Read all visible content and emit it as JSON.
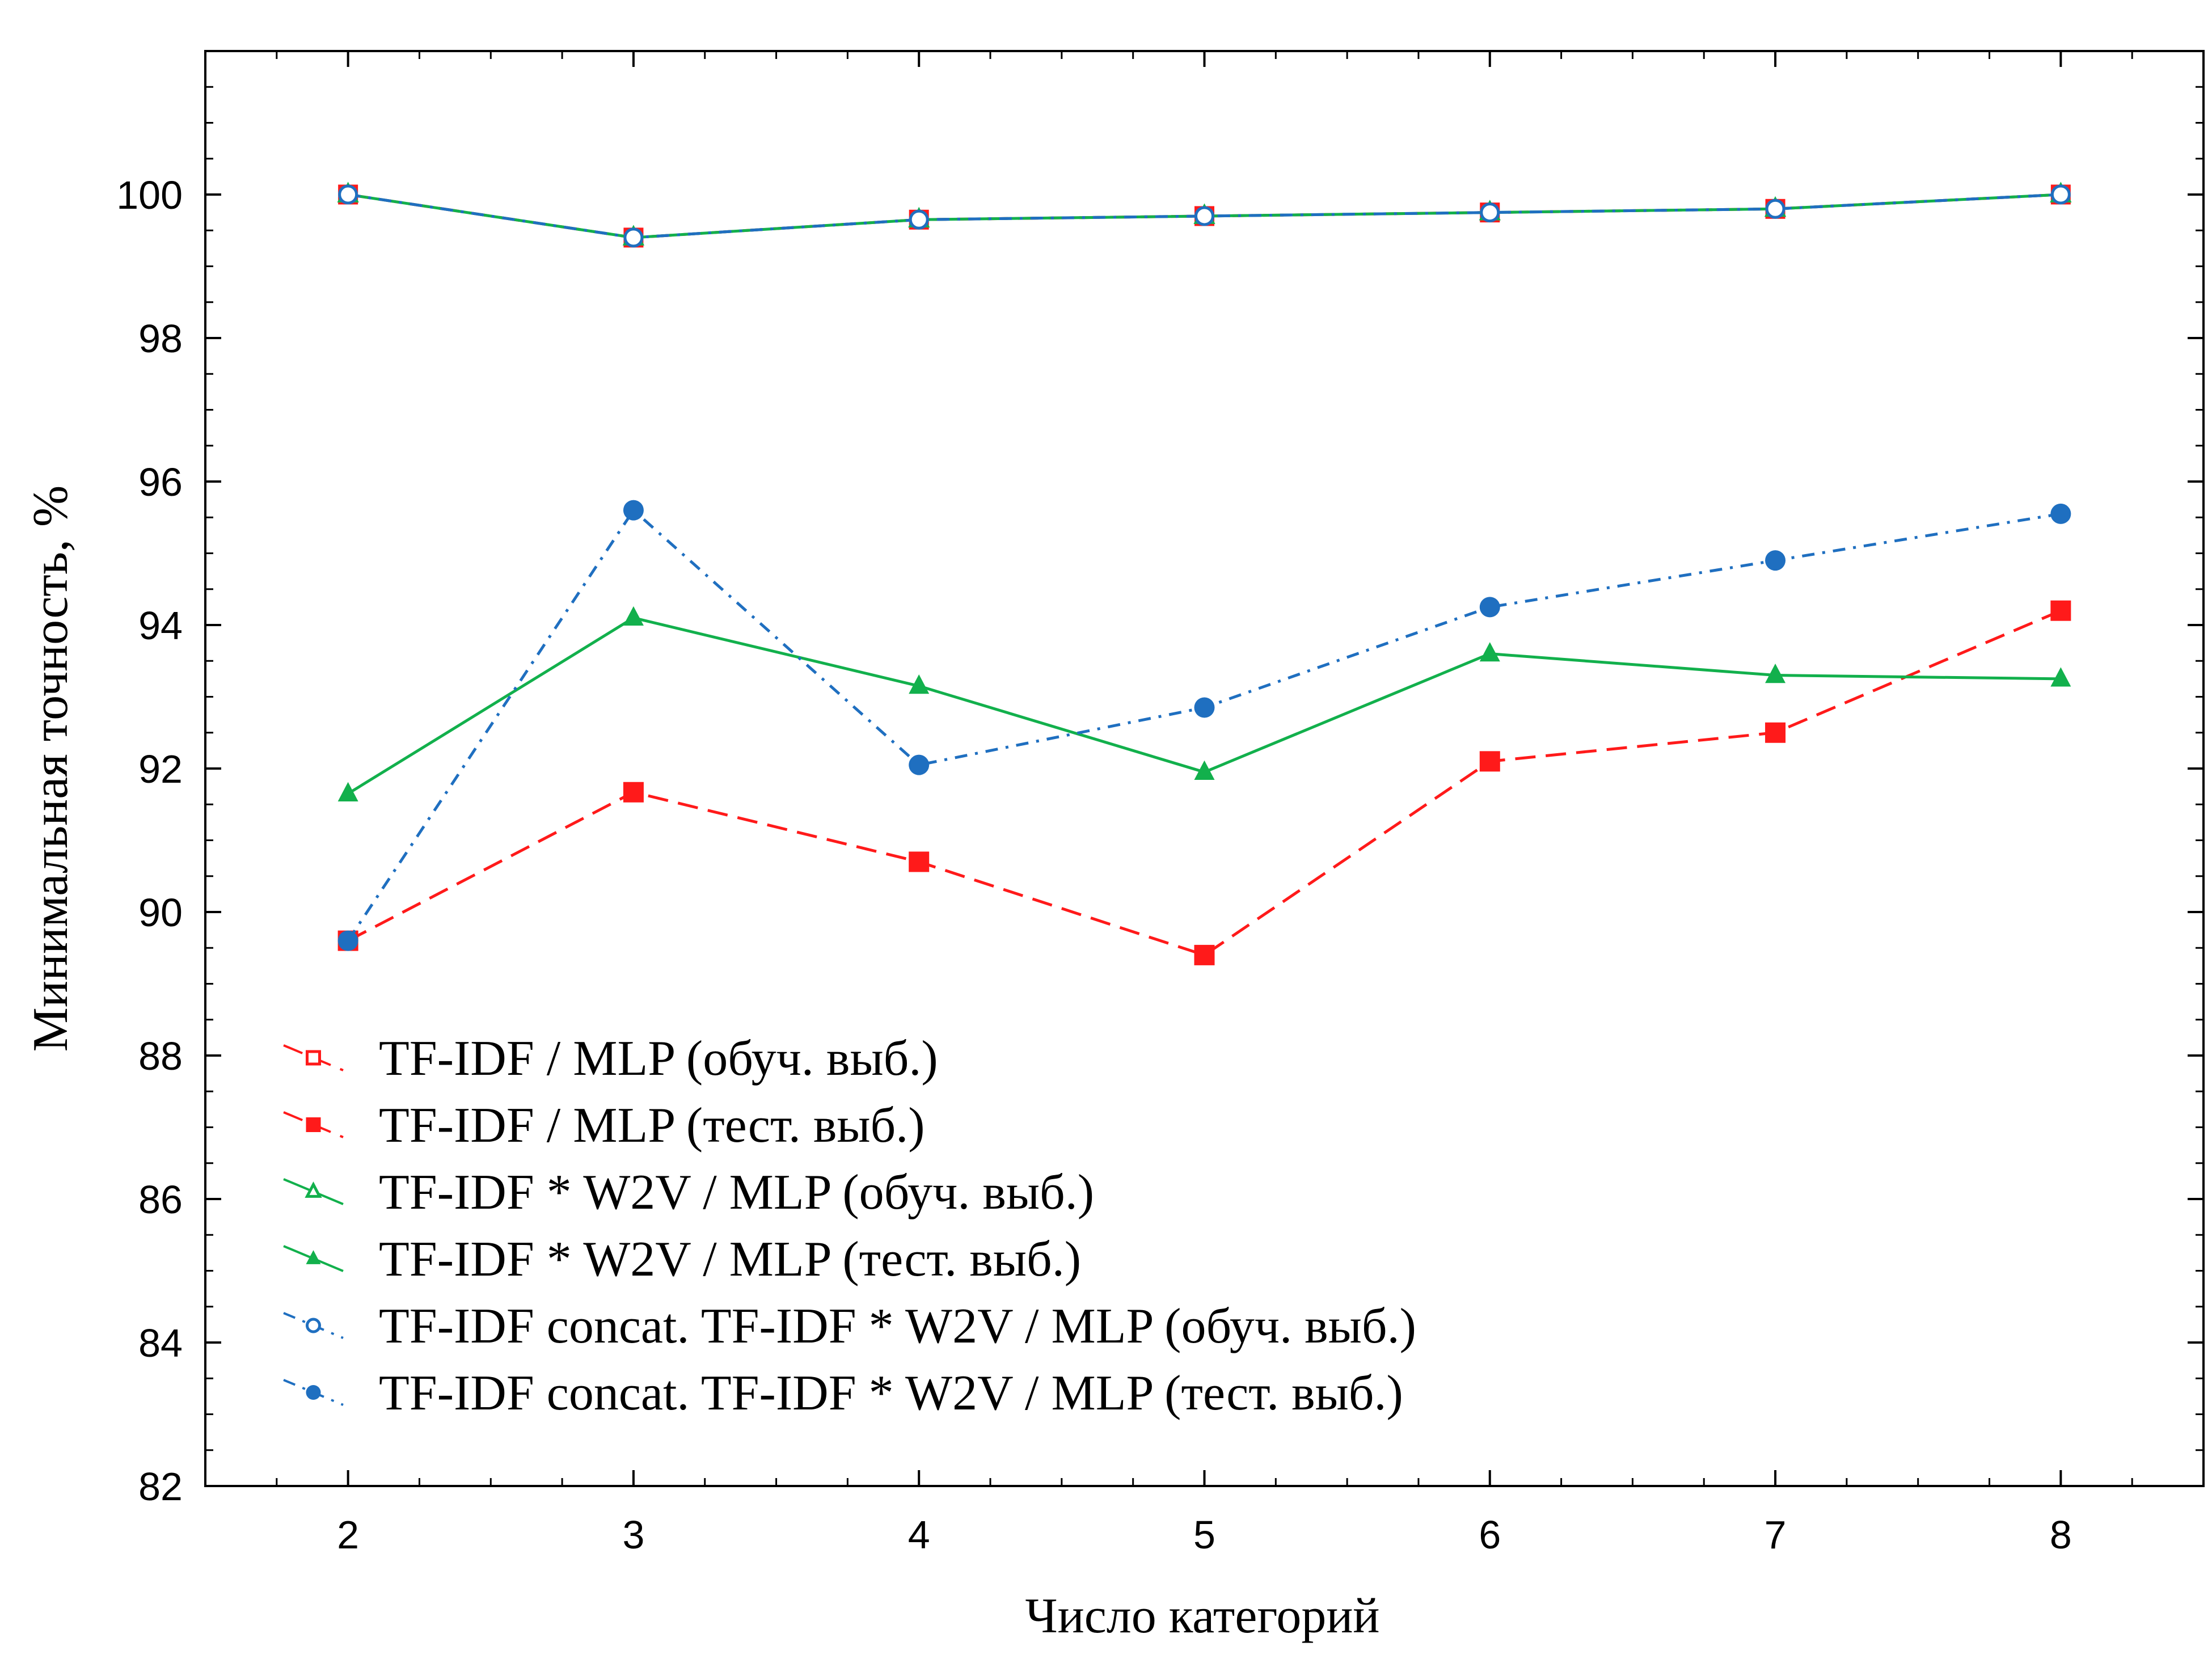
{
  "chart_data": {
    "type": "line",
    "xlabel": "Число категорий",
    "ylabel": "Минимальная точность, %",
    "x": [
      2,
      3,
      4,
      5,
      6,
      7,
      8
    ],
    "xlim": [
      1.5,
      8.5
    ],
    "ylim": [
      82,
      102
    ],
    "x_ticks": [
      "2",
      "3",
      "4",
      "5",
      "6",
      "7",
      "8"
    ],
    "y_ticks": [
      "82",
      "84",
      "86",
      "88",
      "90",
      "92",
      "94",
      "96",
      "98",
      "100"
    ],
    "grid": false,
    "legend_position": "bottom-left",
    "series": [
      {
        "name": "TF-IDF / MLP (обуч. выб.)",
        "color": "#ff1a1a",
        "line": "dash",
        "marker": "square",
        "filled": false,
        "values": [
          100,
          99.4,
          99.65,
          99.7,
          99.75,
          99.8,
          100
        ]
      },
      {
        "name": "TF-IDF / MLP (тест. выб.)",
        "color": "#ff1a1a",
        "line": "dash",
        "marker": "square",
        "filled": true,
        "values": [
          89.6,
          91.67,
          90.7,
          89.4,
          92.1,
          92.5,
          94.2
        ]
      },
      {
        "name": "TF-IDF * W2V / MLP (обуч. выб.)",
        "color": "#12b04c",
        "line": "solid",
        "marker": "triangle",
        "filled": false,
        "values": [
          100,
          99.4,
          99.65,
          99.7,
          99.75,
          99.8,
          100
        ]
      },
      {
        "name": "TF-IDF * W2V / MLP (тест. выб.)",
        "color": "#12b04c",
        "line": "solid",
        "marker": "triangle",
        "filled": true,
        "values": [
          91.65,
          94.1,
          93.15,
          91.95,
          93.6,
          93.3,
          93.25
        ]
      },
      {
        "name": "TF-IDF concat. TF-IDF * W2V / MLP (обуч. выб.)",
        "color": "#1f6fc0",
        "line": "dashdot",
        "marker": "circle",
        "filled": false,
        "values": [
          100,
          99.4,
          99.65,
          99.7,
          99.75,
          99.8,
          100
        ]
      },
      {
        "name": "TF-IDF concat. TF-IDF * W2V / MLP (тест. выб.)",
        "color": "#1f6fc0",
        "line": "dashdot",
        "marker": "circle",
        "filled": true,
        "values": [
          89.6,
          95.6,
          92.05,
          92.85,
          94.25,
          94.9,
          95.55
        ]
      }
    ]
  }
}
